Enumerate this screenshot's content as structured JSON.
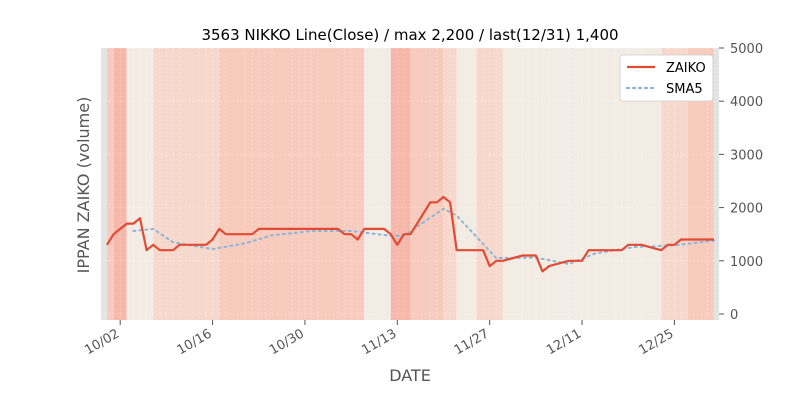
{
  "chart_data": {
    "type": "line",
    "title": "3563 NIKKO Line(Close) / max 2,200 / last(12/31) 1,400",
    "xlabel": "DATE",
    "ylabel": "IPPAN ZAIKO (volume)",
    "ylim": [
      0,
      5000
    ],
    "y_ticks": [
      0,
      1000,
      2000,
      3000,
      4000,
      5000
    ],
    "y_tick_labels": [
      "0",
      "1000",
      "2000",
      "3000",
      "4000",
      "5000"
    ],
    "y_axis_side": "right",
    "x_ticks": [
      "10/02",
      "10/16",
      "10/30",
      "11/13",
      "11/27",
      "12/11",
      "12/25"
    ],
    "grid": true,
    "legend_position": "top-right",
    "colors": {
      "zaiko": "#e24a33",
      "sma": "#8eb4d8",
      "band_levels": [
        "#f3ece5",
        "#f6d8cc",
        "#f7cbbd",
        "#f5b8aa"
      ],
      "edge_band": "#e3e3e3"
    },
    "series": [
      {
        "name": "ZAIKO",
        "x": [
          "09/30",
          "10/01",
          "10/02",
          "10/03",
          "10/04",
          "10/05",
          "10/06",
          "10/07",
          "10/08",
          "10/09",
          "10/10",
          "10/11",
          "10/14",
          "10/15",
          "10/16",
          "10/17",
          "10/18",
          "10/21",
          "10/22",
          "10/23",
          "10/24",
          "10/25",
          "10/28",
          "10/29",
          "10/30",
          "10/31",
          "11/01",
          "11/04",
          "11/05",
          "11/06",
          "11/07",
          "11/08",
          "11/11",
          "11/12",
          "11/13",
          "11/14",
          "11/15",
          "11/18",
          "11/19",
          "11/20",
          "11/21",
          "11/22",
          "11/25",
          "11/26",
          "11/27",
          "11/28",
          "11/29",
          "12/02",
          "12/03",
          "12/04",
          "12/05",
          "12/06",
          "12/09",
          "12/10",
          "12/11",
          "12/12",
          "12/13",
          "12/16",
          "12/17",
          "12/18",
          "12/19",
          "12/20",
          "12/23",
          "12/24",
          "12/25",
          "12/26",
          "12/27",
          "12/30",
          "12/31"
        ],
        "values": [
          1300,
          1500,
          1600,
          1700,
          1700,
          1800,
          1200,
          1300,
          1200,
          1200,
          1200,
          1300,
          1300,
          1300,
          1400,
          1600,
          1500,
          1500,
          1500,
          1600,
          1600,
          1600,
          1600,
          1600,
          1600,
          1600,
          1600,
          1600,
          1500,
          1500,
          1400,
          1600,
          1600,
          1500,
          1300,
          1500,
          1500,
          2100,
          2100,
          2200,
          2100,
          1200,
          1200,
          1200,
          900,
          1000,
          1000,
          1100,
          1100,
          1100,
          800,
          900,
          1000,
          1000,
          1000,
          1200,
          1200,
          1200,
          1200,
          1300,
          1300,
          1300,
          1200,
          1300,
          1300,
          1400,
          1400,
          1400,
          1400
        ]
      },
      {
        "name": "SMA5",
        "x": [
          "10/04",
          "10/07",
          "10/10",
          "10/16",
          "10/21",
          "10/25",
          "10/31",
          "11/06",
          "11/12",
          "11/14",
          "11/20",
          "11/22",
          "11/28",
          "12/04",
          "12/09",
          "12/13",
          "12/19",
          "12/25",
          "12/31"
        ],
        "values": [
          1560,
          1600,
          1350,
          1220,
          1330,
          1480,
          1560,
          1560,
          1470,
          1470,
          1980,
          1850,
          1050,
          1060,
          940,
          1140,
          1260,
          1290,
          1380
        ]
      }
    ],
    "legend": [
      {
        "label": "ZAIKO",
        "style": "solid",
        "color": "#e24a33"
      },
      {
        "label": "SMA5",
        "style": "dotted",
        "color": "#8eb4d8"
      }
    ],
    "background_bands": [
      {
        "from": "09/30",
        "to": "10/01",
        "level": 3
      },
      {
        "from": "10/01",
        "to": "10/03",
        "level": 4
      },
      {
        "from": "10/03",
        "to": "10/07",
        "level": 1
      },
      {
        "from": "10/07",
        "to": "10/17",
        "level": 2
      },
      {
        "from": "10/17",
        "to": "11/08",
        "level": 3
      },
      {
        "from": "11/08",
        "to": "11/12",
        "level": 1
      },
      {
        "from": "11/12",
        "to": "11/15",
        "level": 4
      },
      {
        "from": "11/15",
        "to": "11/20",
        "level": 3
      },
      {
        "from": "11/20",
        "to": "11/22",
        "level": 2
      },
      {
        "from": "11/22",
        "to": "11/25",
        "level": 0
      },
      {
        "from": "11/25",
        "to": "11/29",
        "level": 2
      },
      {
        "from": "11/29",
        "to": "12/09",
        "level": 0
      },
      {
        "from": "12/09",
        "to": "12/23",
        "level": 1
      },
      {
        "from": "12/23",
        "to": "12/27",
        "level": 2
      },
      {
        "from": "12/27",
        "to": "12/31",
        "level": 3
      }
    ]
  }
}
